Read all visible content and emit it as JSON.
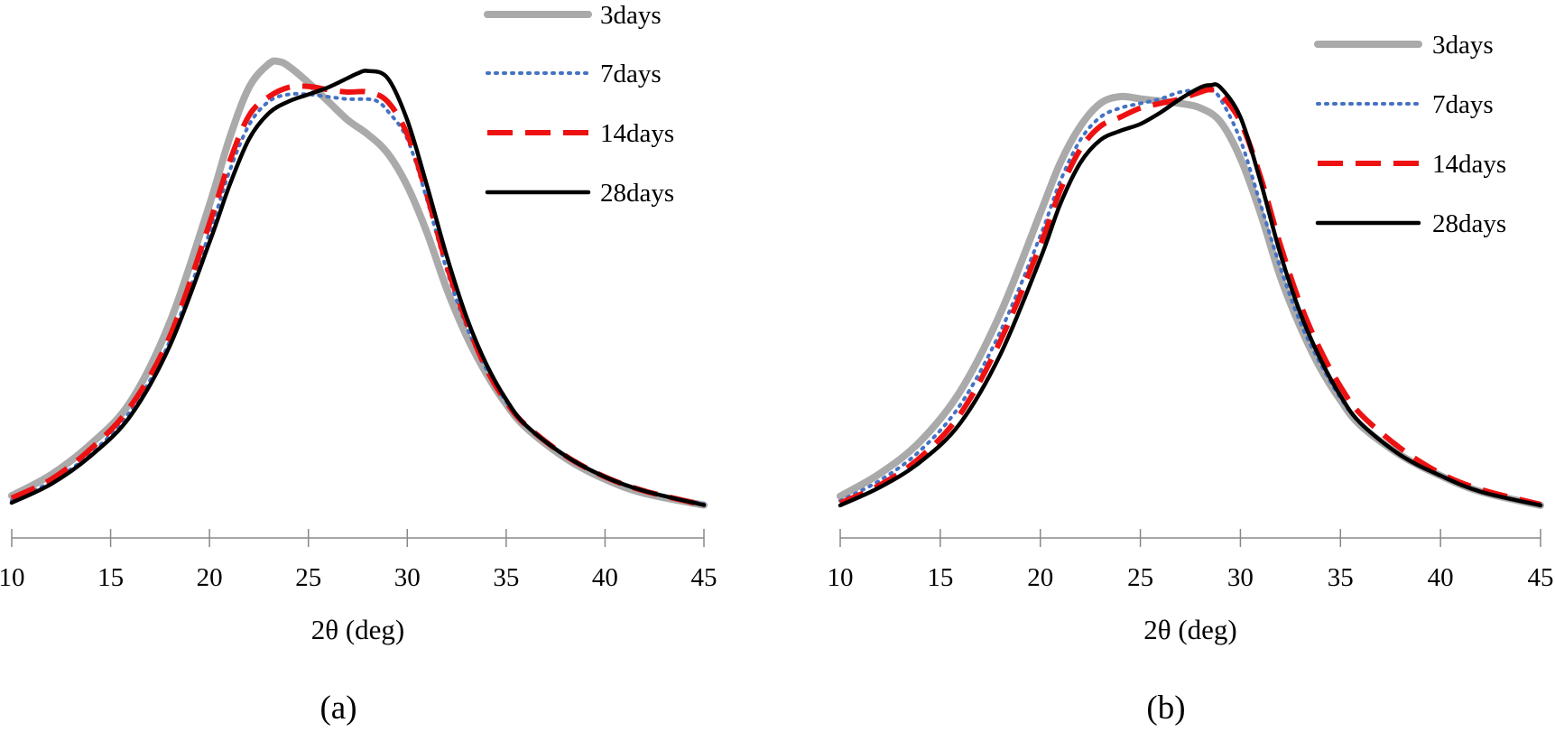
{
  "chart_data": [
    {
      "type": "line",
      "panel_label": "(a)",
      "xlabel": "2θ (deg)",
      "ylabel": "",
      "xlim": [
        10,
        45
      ],
      "ylim": [
        0,
        1
      ],
      "y_axis_shown": false,
      "grid": false,
      "legend_position": "top-right",
      "x_ticks": [
        "10",
        "15",
        "20",
        "25",
        "30",
        "35",
        "40",
        "45"
      ],
      "series": [
        {
          "name": "3days",
          "color": "#aaaaaa",
          "style": "solid-thick",
          "x": [
            10,
            12,
            14,
            16,
            18,
            20,
            21,
            22,
            23,
            23.5,
            24,
            25,
            26,
            27,
            28,
            29,
            30,
            31,
            32,
            33,
            34,
            35,
            36,
            38,
            40,
            42,
            45
          ],
          "y": [
            0.04,
            0.085,
            0.15,
            0.24,
            0.41,
            0.66,
            0.8,
            0.91,
            0.96,
            0.965,
            0.955,
            0.92,
            0.88,
            0.84,
            0.81,
            0.77,
            0.7,
            0.6,
            0.48,
            0.38,
            0.3,
            0.235,
            0.185,
            0.12,
            0.075,
            0.045,
            0.02
          ]
        },
        {
          "name": "7days",
          "color": "#4472c4",
          "style": "dotted",
          "x": [
            10,
            12,
            14,
            16,
            18,
            20,
            21,
            22,
            23,
            24,
            25,
            26,
            27,
            28,
            28.5,
            29,
            30,
            31,
            32,
            33,
            34,
            35,
            36,
            38,
            40,
            42,
            45
          ],
          "y": [
            0.03,
            0.07,
            0.13,
            0.22,
            0.37,
            0.6,
            0.73,
            0.83,
            0.88,
            0.895,
            0.895,
            0.89,
            0.885,
            0.885,
            0.88,
            0.86,
            0.8,
            0.67,
            0.52,
            0.4,
            0.31,
            0.24,
            0.19,
            0.125,
            0.08,
            0.05,
            0.022
          ]
        },
        {
          "name": "14days",
          "color": "#ee1111",
          "style": "dashed",
          "x": [
            10,
            12,
            14,
            16,
            18,
            20,
            21,
            22,
            23,
            24,
            25,
            26,
            27,
            28,
            29,
            30,
            31,
            32,
            33,
            34,
            35,
            36,
            38,
            40,
            42,
            45
          ],
          "y": [
            0.035,
            0.075,
            0.14,
            0.23,
            0.38,
            0.62,
            0.75,
            0.85,
            0.89,
            0.91,
            0.912,
            0.905,
            0.9,
            0.9,
            0.88,
            0.81,
            0.68,
            0.53,
            0.41,
            0.31,
            0.24,
            0.19,
            0.125,
            0.08,
            0.05,
            0.02
          ]
        },
        {
          "name": "28days",
          "color": "#000000",
          "style": "solid",
          "x": [
            10,
            12,
            14,
            16,
            18,
            20,
            21,
            22,
            23,
            24,
            25,
            26,
            27,
            27.5,
            28,
            29,
            30,
            31,
            32,
            33,
            34,
            35,
            36,
            38,
            40,
            42,
            45
          ],
          "y": [
            0.025,
            0.065,
            0.125,
            0.21,
            0.36,
            0.58,
            0.7,
            0.8,
            0.855,
            0.88,
            0.895,
            0.91,
            0.93,
            0.94,
            0.945,
            0.93,
            0.84,
            0.7,
            0.55,
            0.42,
            0.32,
            0.245,
            0.19,
            0.125,
            0.08,
            0.05,
            0.02
          ]
        }
      ]
    },
    {
      "type": "line",
      "panel_label": "(b)",
      "xlabel": "2θ (deg)",
      "ylabel": "",
      "xlim": [
        10,
        45
      ],
      "ylim": [
        0,
        1
      ],
      "y_axis_shown": false,
      "grid": false,
      "legend_position": "top-right",
      "x_ticks": [
        "10",
        "15",
        "20",
        "25",
        "30",
        "35",
        "40",
        "45"
      ],
      "series": [
        {
          "name": "3days",
          "color": "#aaaaaa",
          "style": "solid-thick",
          "x": [
            10,
            12,
            14,
            16,
            18,
            20,
            21,
            22,
            23,
            24,
            25,
            26,
            27,
            28,
            29,
            30,
            31,
            32,
            33,
            34,
            35,
            36,
            38,
            40,
            42,
            45
          ],
          "y": [
            0.04,
            0.09,
            0.16,
            0.27,
            0.44,
            0.66,
            0.77,
            0.85,
            0.9,
            0.915,
            0.91,
            0.905,
            0.9,
            0.89,
            0.86,
            0.78,
            0.66,
            0.52,
            0.41,
            0.32,
            0.25,
            0.195,
            0.13,
            0.085,
            0.05,
            0.02
          ]
        },
        {
          "name": "7days",
          "color": "#4472c4",
          "style": "dotted",
          "x": [
            10,
            12,
            14,
            16,
            18,
            20,
            21,
            22,
            23,
            24,
            25,
            26,
            27,
            28,
            28.5,
            29,
            30,
            31,
            32,
            33,
            34,
            35,
            36,
            38,
            40,
            42,
            45
          ],
          "y": [
            0.03,
            0.075,
            0.14,
            0.24,
            0.4,
            0.61,
            0.73,
            0.82,
            0.87,
            0.89,
            0.9,
            0.91,
            0.925,
            0.93,
            0.93,
            0.91,
            0.82,
            0.68,
            0.54,
            0.42,
            0.33,
            0.255,
            0.2,
            0.13,
            0.085,
            0.05,
            0.02
          ]
        },
        {
          "name": "14days",
          "color": "#ee1111",
          "style": "dashed",
          "x": [
            10,
            12,
            14,
            16,
            18,
            20,
            21,
            22,
            23,
            24,
            25,
            26,
            27,
            28,
            28.5,
            29,
            30,
            31,
            32,
            33,
            34,
            35,
            36,
            38,
            40,
            42,
            45
          ],
          "y": [
            0.025,
            0.065,
            0.125,
            0.22,
            0.38,
            0.59,
            0.71,
            0.8,
            0.85,
            0.87,
            0.89,
            0.9,
            0.91,
            0.925,
            0.93,
            0.92,
            0.86,
            0.74,
            0.59,
            0.46,
            0.36,
            0.28,
            0.22,
            0.145,
            0.09,
            0.055,
            0.022
          ]
        },
        {
          "name": "28days",
          "color": "#000000",
          "style": "solid",
          "x": [
            10,
            12,
            14,
            16,
            18,
            20,
            21,
            22,
            23,
            24,
            25,
            26,
            27,
            28,
            28.5,
            29,
            30,
            31,
            32,
            33,
            34,
            35,
            36,
            38,
            40,
            42,
            45
          ],
          "y": [
            0.02,
            0.06,
            0.115,
            0.2,
            0.35,
            0.56,
            0.68,
            0.77,
            0.82,
            0.84,
            0.855,
            0.88,
            0.91,
            0.935,
            0.94,
            0.935,
            0.87,
            0.73,
            0.57,
            0.44,
            0.34,
            0.26,
            0.2,
            0.13,
            0.085,
            0.05,
            0.02
          ]
        }
      ]
    }
  ]
}
